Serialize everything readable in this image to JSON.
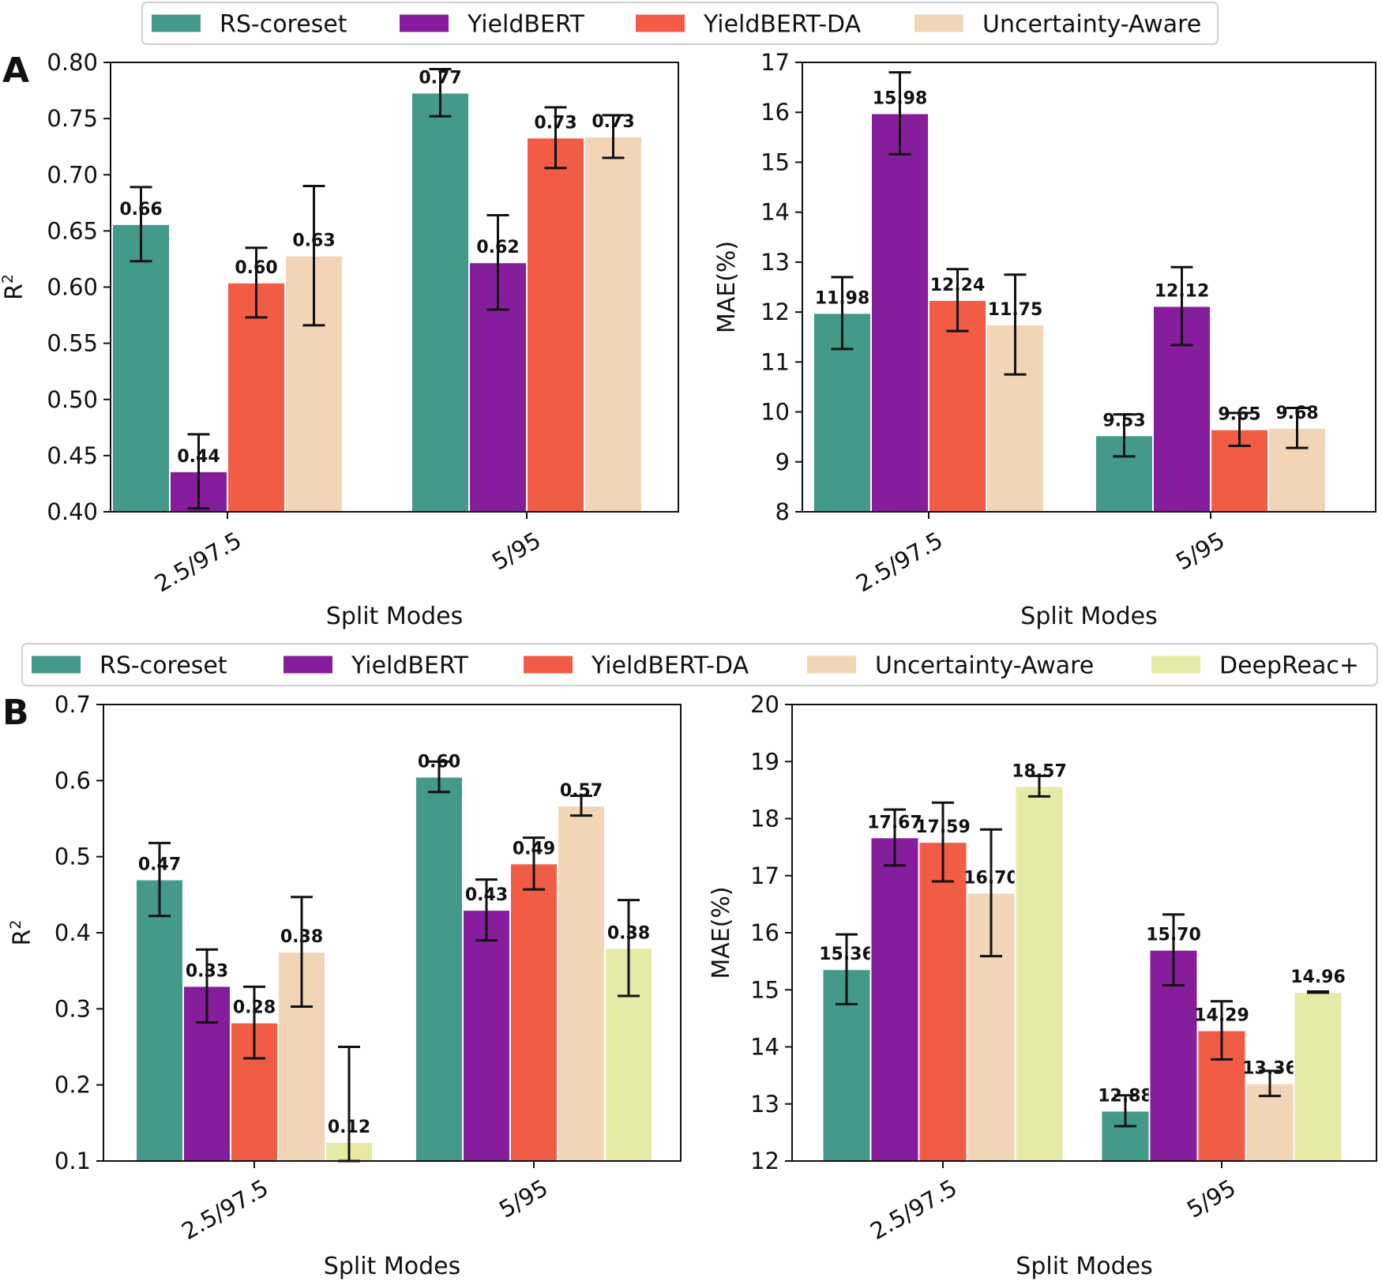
{
  "figure": {
    "panel_a_label": "A",
    "panel_b_label": "B"
  },
  "colors": {
    "RS-coreset": "#43998a",
    "YieldBERT": "#861d9c",
    "YieldBERT-DA": "#f15c45",
    "Uncertainty-Aware": "#f2d5b7",
    "DeepReac+": "#e6eaa7"
  },
  "legends": {
    "top": [
      "RS-coreset",
      "YieldBERT",
      "YieldBERT-DA",
      "Uncertainty-Aware"
    ],
    "bottom": [
      "RS-coreset",
      "YieldBERT",
      "YieldBERT-DA",
      "Uncertainty-Aware",
      "DeepReac+"
    ]
  },
  "chart_data": [
    {
      "id": "a-r2",
      "type": "bar",
      "panel": "A",
      "title": "",
      "xlabel": "Split Modes",
      "ylabel": "R^2",
      "categories": [
        "2.5/97.5",
        "5/95"
      ],
      "ylim": [
        0.4,
        0.8
      ],
      "yticks": [
        0.4,
        0.45,
        0.5,
        0.55,
        0.6,
        0.65,
        0.7,
        0.75,
        0.8
      ],
      "ytick_labels": [
        "0.40",
        "0.45",
        "0.50",
        "0.55",
        "0.60",
        "0.65",
        "0.70",
        "0.75",
        "0.80"
      ],
      "series": [
        {
          "name": "RS-coreset",
          "values": [
            0.656,
            0.773
          ],
          "errors": [
            0.033,
            0.021
          ],
          "labels": [
            "0.66",
            "0.77"
          ]
        },
        {
          "name": "YieldBERT",
          "values": [
            0.436,
            0.622
          ],
          "errors": [
            0.033,
            0.042
          ],
          "labels": [
            "0.44",
            "0.62"
          ]
        },
        {
          "name": "YieldBERT-DA",
          "values": [
            0.604,
            0.733
          ],
          "errors": [
            0.031,
            0.027
          ],
          "labels": [
            "0.60",
            "0.73"
          ]
        },
        {
          "name": "Uncertainty-Aware",
          "values": [
            0.628,
            0.734
          ],
          "errors": [
            0.062,
            0.019
          ],
          "labels": [
            "0.63",
            "0.73"
          ]
        }
      ]
    },
    {
      "id": "a-mae",
      "type": "bar",
      "panel": "A",
      "title": "",
      "xlabel": "Split Modes",
      "ylabel": "MAE(%)",
      "categories": [
        "2.5/97.5",
        "5/95"
      ],
      "ylim": [
        8,
        17
      ],
      "yticks": [
        8,
        9,
        10,
        11,
        12,
        13,
        14,
        15,
        16,
        17
      ],
      "ytick_labels": [
        "8",
        "9",
        "10",
        "11",
        "12",
        "13",
        "14",
        "15",
        "16",
        "17"
      ],
      "series": [
        {
          "name": "RS-coreset",
          "values": [
            11.98,
            9.53
          ],
          "errors": [
            0.72,
            0.42
          ],
          "labels": [
            "11.98",
            "9.53"
          ]
        },
        {
          "name": "YieldBERT",
          "values": [
            15.98,
            12.12
          ],
          "errors": [
            0.82,
            0.78
          ],
          "labels": [
            "15.98",
            "12.12"
          ]
        },
        {
          "name": "YieldBERT-DA",
          "values": [
            12.24,
            9.65
          ],
          "errors": [
            0.62,
            0.33
          ],
          "labels": [
            "12.24",
            "9.65"
          ]
        },
        {
          "name": "Uncertainty-Aware",
          "values": [
            11.75,
            9.68
          ],
          "errors": [
            1.0,
            0.4
          ],
          "labels": [
            "11.75",
            "9.68"
          ]
        }
      ]
    },
    {
      "id": "b-r2",
      "type": "bar",
      "panel": "B",
      "title": "",
      "xlabel": "Split Modes",
      "ylabel": "R^2",
      "categories": [
        "2.5/97.5",
        "5/95"
      ],
      "ylim": [
        0.1,
        0.7
      ],
      "yticks": [
        0.1,
        0.2,
        0.3,
        0.4,
        0.5,
        0.6,
        0.7
      ],
      "ytick_labels": [
        "0.1",
        "0.2",
        "0.3",
        "0.4",
        "0.5",
        "0.6",
        "0.7"
      ],
      "series": [
        {
          "name": "RS-coreset",
          "values": [
            0.47,
            0.605
          ],
          "errors": [
            0.048,
            0.02
          ],
          "labels": [
            "0.47",
            "0.60"
          ]
        },
        {
          "name": "YieldBERT",
          "values": [
            0.33,
            0.43
          ],
          "errors": [
            0.048,
            0.04
          ],
          "labels": [
            "0.33",
            "0.43"
          ]
        },
        {
          "name": "YieldBERT-DA",
          "values": [
            0.282,
            0.491
          ],
          "errors": [
            0.047,
            0.034
          ],
          "labels": [
            "0.28",
            "0.49"
          ]
        },
        {
          "name": "Uncertainty-Aware",
          "values": [
            0.375,
            0.567
          ],
          "errors": [
            0.072,
            0.013
          ],
          "labels": [
            "0.38",
            "0.57"
          ]
        },
        {
          "name": "DeepReac+",
          "values": [
            0.125,
            0.38
          ],
          "errors": [
            0.125,
            0.063
          ],
          "labels": [
            "0.12",
            "0.38"
          ]
        }
      ]
    },
    {
      "id": "b-mae",
      "type": "bar",
      "panel": "B",
      "title": "",
      "xlabel": "Split Modes",
      "ylabel": "MAE(%)",
      "categories": [
        "2.5/97.5",
        "5/95"
      ],
      "ylim": [
        12,
        20
      ],
      "yticks": [
        12,
        13,
        14,
        15,
        16,
        17,
        18,
        19,
        20
      ],
      "ytick_labels": [
        "12",
        "13",
        "14",
        "15",
        "16",
        "17",
        "18",
        "19",
        "20"
      ],
      "series": [
        {
          "name": "RS-coreset",
          "values": [
            15.36,
            12.88
          ],
          "errors": [
            0.61,
            0.27
          ],
          "labels": [
            "15.36",
            "12.88"
          ]
        },
        {
          "name": "YieldBERT",
          "values": [
            17.67,
            15.7
          ],
          "errors": [
            0.49,
            0.62
          ],
          "labels": [
            "17.67",
            "15.70"
          ]
        },
        {
          "name": "YieldBERT-DA",
          "values": [
            17.59,
            14.29
          ],
          "errors": [
            0.69,
            0.51
          ],
          "labels": [
            "17.59",
            "14.29"
          ]
        },
        {
          "name": "Uncertainty-Aware",
          "values": [
            16.7,
            13.36
          ],
          "errors": [
            1.11,
            0.22
          ],
          "labels": [
            "16.70",
            "13.36"
          ]
        },
        {
          "name": "DeepReac+",
          "values": [
            18.57,
            14.96
          ],
          "errors": [
            0.18,
            0.01
          ],
          "labels": [
            "18.57",
            "14.96"
          ]
        }
      ]
    }
  ]
}
